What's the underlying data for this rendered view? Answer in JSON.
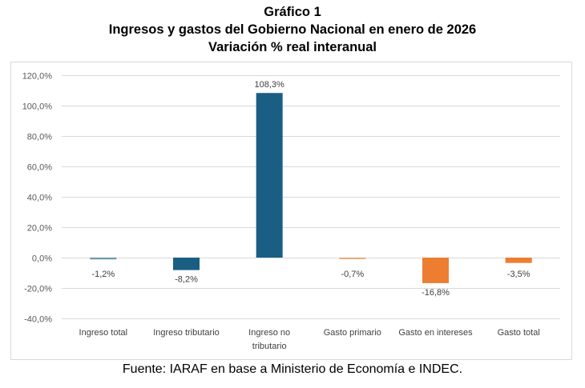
{
  "header": {
    "line1": "Gráfico 1",
    "line2": "Ingresos y gastos del Gobierno Nacional en enero de 2026",
    "line3": "Variación % real interanual"
  },
  "source": "Fuente: IARAF en base a Ministerio de Economía e INDEC.",
  "chart_data": {
    "type": "bar",
    "title": "Ingresos y gastos del Gobierno Nacional en enero de 2026",
    "subtitle": "Variación % real interanual",
    "xlabel": "",
    "ylabel": "",
    "categories": [
      [
        "Ingreso total"
      ],
      [
        "Ingreso tributario"
      ],
      [
        "Ingreso no",
        "tributario"
      ],
      [
        "Gasto primario"
      ],
      [
        "Gasto en intereses"
      ],
      [
        "Gasto total"
      ]
    ],
    "category_names": [
      "Ingreso total",
      "Ingreso tributario",
      "Ingreso no tributario",
      "Gasto primario",
      "Gasto en intereses",
      "Gasto total"
    ],
    "values": [
      -1.2,
      -8.2,
      108.3,
      -0.7,
      -16.8,
      -3.5
    ],
    "data_labels": [
      "-1,2%",
      "-8,2%",
      "108,3%",
      "-0,7%",
      "-16,8%",
      "-3,5%"
    ],
    "bar_colors": [
      "#1b5e84",
      "#1b5e84",
      "#1b5e84",
      "#ed7d31",
      "#ed7d31",
      "#ed7d31"
    ],
    "ylim": [
      -40,
      120
    ],
    "yticks": [
      120,
      100,
      80,
      60,
      40,
      20,
      0,
      -20,
      -40
    ],
    "ytick_labels": [
      "120,0%",
      "100,0%",
      "80,0%",
      "60,0%",
      "40,0%",
      "20,0%",
      "0,0%",
      "-20,0%",
      "-40,0%"
    ],
    "grid": true,
    "legend": "none"
  }
}
